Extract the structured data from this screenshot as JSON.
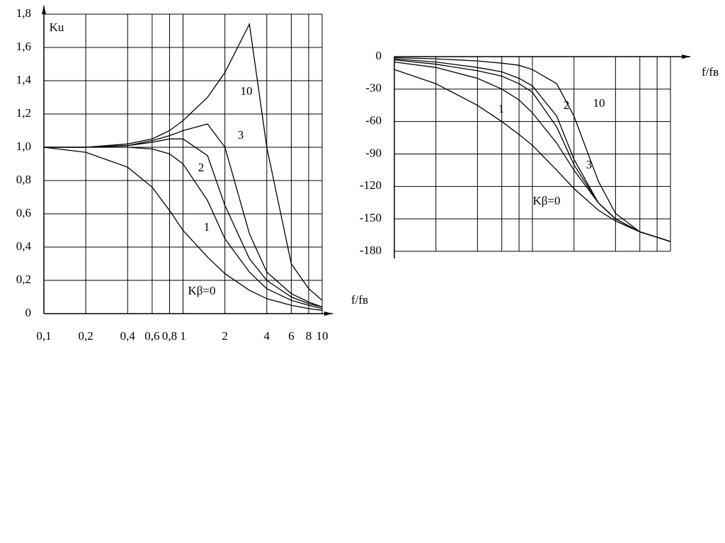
{
  "chart_data": [
    {
      "type": "line",
      "y_label": "Ku",
      "x_label": "f/fв",
      "xlog": true,
      "grid": true,
      "xtick_labels": true,
      "xlim": [
        0.1,
        10
      ],
      "ylim": [
        0,
        1.8
      ],
      "xticks": [
        {
          "value": 0.1,
          "label": "0,1"
        },
        {
          "value": 0.2,
          "label": "0,2"
        },
        {
          "value": 0.4,
          "label": "0,4"
        },
        {
          "value": 0.6,
          "label": "0,6"
        },
        {
          "value": 0.8,
          "label": "0,8"
        },
        1,
        2,
        4,
        6,
        8,
        10
      ],
      "yticks": [
        0,
        {
          "value": 0.2,
          "label": "0,2"
        },
        {
          "value": 0.4,
          "label": "0,4"
        },
        {
          "value": 0.6,
          "label": "0,6"
        },
        {
          "value": 0.8,
          "label": "0,8"
        },
        {
          "value": 1.0,
          "label": "1,0"
        },
        {
          "value": 1.2,
          "label": "1,2"
        },
        {
          "value": 1.4,
          "label": "1,4"
        },
        {
          "value": 1.6,
          "label": "1,6"
        },
        {
          "value": 1.8,
          "label": "1,8"
        }
      ],
      "x": [
        0.1,
        0.2,
        0.4,
        0.6,
        0.8,
        1,
        1.5,
        2,
        3,
        4,
        6,
        8,
        10
      ],
      "series": [
        {
          "name": "Kβ=0",
          "color": "#000000",
          "values": [
            1,
            0.97,
            0.88,
            0.76,
            0.62,
            0.5,
            0.34,
            0.24,
            0.14,
            0.09,
            0.05,
            0.03,
            0.02
          ]
        },
        {
          "name": "1",
          "color": "#000000",
          "values": [
            1,
            1,
            1,
            0.99,
            0.96,
            0.9,
            0.68,
            0.45,
            0.25,
            0.15,
            0.08,
            0.05,
            0.03
          ]
        },
        {
          "name": "2",
          "color": "#000000",
          "values": [
            1,
            1,
            1.01,
            1.03,
            1.05,
            1.05,
            0.95,
            0.65,
            0.33,
            0.2,
            0.1,
            0.06,
            0.04
          ]
        },
        {
          "name": "3",
          "color": "#000000",
          "values": [
            1,
            1,
            1.01,
            1.04,
            1.07,
            1.1,
            1.14,
            1.0,
            0.48,
            0.25,
            0.12,
            0.07,
            0.04
          ]
        },
        {
          "name": "10",
          "color": "#000000",
          "values": [
            1,
            1,
            1.02,
            1.05,
            1.1,
            1.16,
            1.3,
            1.45,
            1.74,
            1.0,
            0.3,
            0.15,
            0.08
          ]
        }
      ]
    },
    {
      "type": "line",
      "x_label": "f/fв",
      "xlog": true,
      "grid": true,
      "xtick_labels": false,
      "xlim": [
        0.1,
        10
      ],
      "ylim": [
        -180,
        0
      ],
      "xticks": [
        0.1,
        0.2,
        0.4,
        0.6,
        0.8,
        1,
        2,
        4,
        6,
        8,
        10
      ],
      "yticks": [
        0,
        -30,
        -60,
        -90,
        -120,
        -150,
        -180
      ],
      "x": [
        0.1,
        0.2,
        0.4,
        0.6,
        0.8,
        1,
        1.5,
        2,
        3,
        4,
        6,
        8,
        10
      ],
      "series": [
        {
          "name": "Kβ=0",
          "color": "#000000",
          "values": [
            -12,
            -25,
            -45,
            -60,
            -72,
            -82,
            -105,
            -122,
            -142,
            -152,
            -162,
            -167,
            -171
          ]
        },
        {
          "name": "1",
          "color": "#000000",
          "values": [
            -5,
            -10,
            -20,
            -30,
            -40,
            -52,
            -80,
            -105,
            -135,
            -150,
            -162,
            -167,
            -171
          ]
        },
        {
          "name": "2",
          "color": "#000000",
          "values": [
            -3,
            -7,
            -13,
            -18,
            -25,
            -33,
            -65,
            -100,
            -135,
            -150,
            -162,
            -167,
            -171
          ]
        },
        {
          "name": "3",
          "color": "#000000",
          "values": [
            -2,
            -5,
            -10,
            -14,
            -20,
            -27,
            -55,
            -95,
            -135,
            -150,
            -162,
            -167,
            -171
          ]
        },
        {
          "name": "10",
          "color": "#000000",
          "values": [
            -1,
            -2,
            -4,
            -6,
            -8,
            -12,
            -25,
            -55,
            -115,
            -145,
            -162,
            -167,
            -171
          ]
        }
      ]
    }
  ]
}
